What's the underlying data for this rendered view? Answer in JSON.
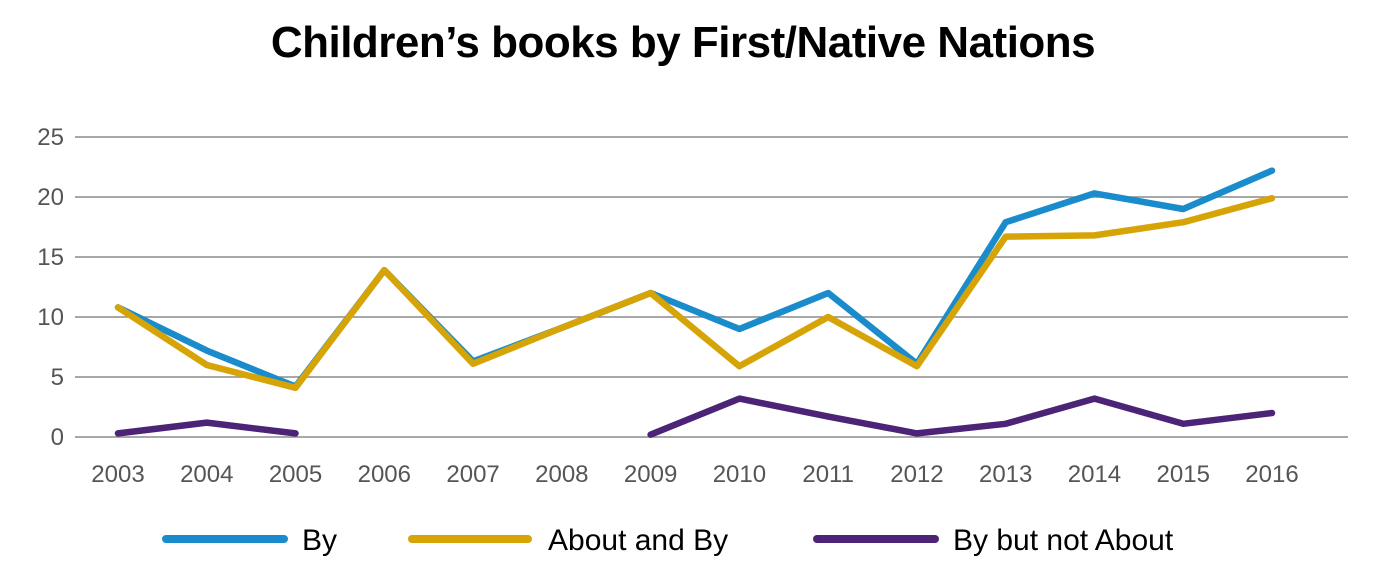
{
  "chart_data": {
    "type": "line",
    "title": "Children’s books by First/Native Nations",
    "xlabel": "",
    "ylabel": "",
    "categories": [
      "2003",
      "2004",
      "2005",
      "2006",
      "2007",
      "2008",
      "2009",
      "2010",
      "2011",
      "2012",
      "2013",
      "2014",
      "2015",
      "2016"
    ],
    "yticks": [
      "0",
      "5",
      "10",
      "15",
      "20",
      "25"
    ],
    "ylim": [
      0,
      25
    ],
    "grid": true,
    "legend_position": "bottom",
    "series": [
      {
        "name": "By",
        "color": "#1a8ccc",
        "values": [
          10.8,
          7.2,
          4.2,
          13.9,
          6.3,
          9.1,
          12.0,
          9.0,
          12.0,
          6.1,
          17.9,
          20.3,
          19.0,
          22.2
        ]
      },
      {
        "name": "About and By",
        "color": "#d6a406",
        "values": [
          10.8,
          6.0,
          4.1,
          13.9,
          6.1,
          9.1,
          12.0,
          5.9,
          10.0,
          5.9,
          16.7,
          16.8,
          17.9,
          19.9
        ]
      },
      {
        "name": "By but not About",
        "color": "#4b2377",
        "values": [
          0.3,
          1.2,
          0.3,
          null,
          null,
          null,
          0.2,
          3.2,
          1.7,
          0.3,
          1.1,
          3.2,
          1.1,
          2.0
        ]
      }
    ]
  }
}
